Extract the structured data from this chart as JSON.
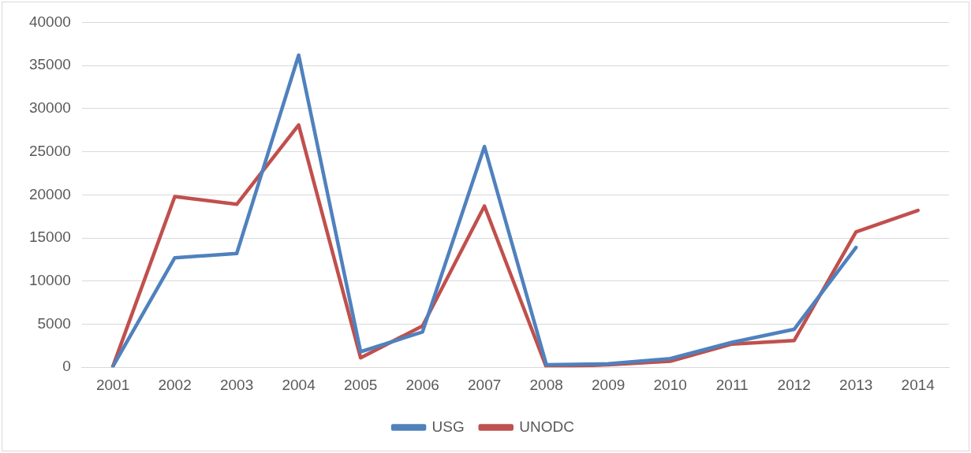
{
  "chart_data": {
    "type": "line",
    "categories": [
      "2001",
      "2002",
      "2003",
      "2004",
      "2005",
      "2006",
      "2007",
      "2008",
      "2009",
      "2010",
      "2011",
      "2012",
      "2013",
      "2014"
    ],
    "series": [
      {
        "name": "USG",
        "color": "#4f81bd",
        "values": [
          100,
          12700,
          13200,
          36200,
          1800,
          4100,
          25600,
          300,
          400,
          1000,
          2900,
          4400,
          13900,
          null
        ]
      },
      {
        "name": "UNODC",
        "color": "#c0504d",
        "values": [
          100,
          19800,
          18900,
          28100,
          1100,
          4800,
          18700,
          0,
          300,
          700,
          2700,
          3100,
          15700,
          18200
        ]
      }
    ],
    "ylim": [
      0,
      40000
    ],
    "yticks": [
      0,
      5000,
      10000,
      15000,
      20000,
      25000,
      30000,
      35000,
      40000
    ],
    "grid": "y",
    "legend": "bottom",
    "marker": "none",
    "line_style": "solid"
  }
}
